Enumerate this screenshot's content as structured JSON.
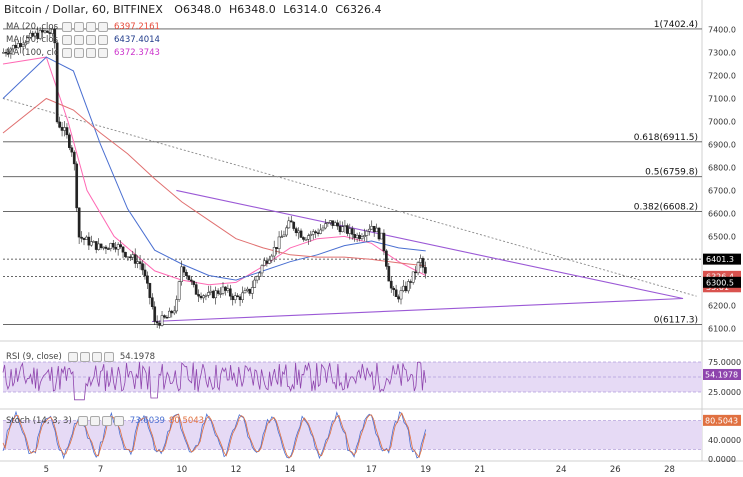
{
  "header": {
    "symbol": "Bitcoin / Dollar, 60, BITFINEX",
    "open": "O6348.0",
    "high": "H6348.0",
    "low": "L6314.0",
    "close": "C6326.4"
  },
  "ma_legend": [
    {
      "label": "MA (20, close)",
      "value": "6397.2161",
      "color": "#e74c3c"
    },
    {
      "label": "MA (50, close)",
      "value": "6437.4014",
      "color": "#1f3a8a"
    },
    {
      "label": "MA (100, close)",
      "value": "6372.3743",
      "color": "#cc33cc"
    }
  ],
  "price_markers": [
    {
      "label": "6401.3",
      "value": 6401.3,
      "bg": "#000000",
      "fg": "#ffffff"
    },
    {
      "label": "6326.4",
      "value": 6326.4,
      "bg": "#d9534f",
      "fg": "#ffffff"
    },
    {
      "label": "35:01",
      "value": 6281,
      "bg": "#d9534f",
      "fg": "#ffffff"
    },
    {
      "label": "6300.5",
      "value": 6300.5,
      "bg": "#000000",
      "fg": "#ffffff"
    }
  ],
  "fib_labels": [
    {
      "label": "1(7402.4)",
      "value": 7402.4
    },
    {
      "label": "0.618(6911.5)",
      "value": 6911.5
    },
    {
      "label": "0.5(6759.8)",
      "value": 6759.8
    },
    {
      "label": "0.382(6608.2)",
      "value": 6608.2
    },
    {
      "label": "0(6117.3)",
      "value": 6117.3
    }
  ],
  "rsi": {
    "label": "RSI (9, close)",
    "value": "54.1978",
    "ticks": [
      "75.0000",
      "50.0000",
      "25.0000"
    ],
    "tick_values": [
      75,
      50,
      25
    ],
    "current_label": "54.1978"
  },
  "stoch": {
    "label": "Stoch (14, 3, 3)",
    "k_value": "73.6039",
    "d_value": "80.5043",
    "ticks": [
      "80.0000",
      "40.0000",
      "0.0000"
    ],
    "tick_values": [
      80,
      40,
      0
    ],
    "current_label": "80.5043"
  },
  "chart_data": {
    "type": "candlestick",
    "title": "Bitcoin / Dollar, 60, BITFINEX",
    "y_ticks": [
      7400,
      7300,
      7200,
      7100,
      7000,
      6900,
      6800,
      6700,
      6600,
      6500,
      6400,
      6300,
      6200,
      6100
    ],
    "y_tick_labels": [
      "7400.0",
      "7300.0",
      "7200.0",
      "7100.0",
      "7000.0",
      "6900.0",
      "6800.0",
      "6700.0",
      "6600.0",
      "6500.0",
      "6400.0",
      "6300.0",
      "6200.0",
      "6100.0"
    ],
    "ylim": [
      6080,
      7450
    ],
    "x_ticks": [
      5,
      7,
      10,
      12,
      14,
      17,
      19,
      21,
      24,
      26,
      28
    ],
    "x_tick_labels": [
      "5",
      "7",
      "10",
      "12",
      "14",
      "17",
      "19",
      "21",
      "24",
      "26",
      "28"
    ],
    "xlim": [
      3.4,
      29.2
    ],
    "price_path": [
      [
        3.4,
        7300
      ],
      [
        4.0,
        7340
      ],
      [
        4.5,
        7370
      ],
      [
        5.0,
        7390
      ],
      [
        5.3,
        7380
      ],
      [
        5.4,
        7000
      ],
      [
        5.7,
        6950
      ],
      [
        6.0,
        6860
      ],
      [
        6.2,
        6500
      ],
      [
        6.5,
        6480
      ],
      [
        7.0,
        6450
      ],
      [
        7.5,
        6470
      ],
      [
        8.0,
        6420
      ],
      [
        8.5,
        6380
      ],
      [
        8.9,
        6200
      ],
      [
        9.0,
        6120
      ],
      [
        9.5,
        6150
      ],
      [
        9.8,
        6200
      ],
      [
        10.0,
        6380
      ],
      [
        10.5,
        6260
      ],
      [
        11.0,
        6240
      ],
      [
        11.5,
        6270
      ],
      [
        12.0,
        6230
      ],
      [
        12.5,
        6260
      ],
      [
        13.0,
        6380
      ],
      [
        13.5,
        6460
      ],
      [
        14.0,
        6560
      ],
      [
        14.5,
        6500
      ],
      [
        15.0,
        6520
      ],
      [
        15.5,
        6560
      ],
      [
        16.0,
        6530
      ],
      [
        16.5,
        6500
      ],
      [
        17.0,
        6550
      ],
      [
        17.4,
        6490
      ],
      [
        17.7,
        6280
      ],
      [
        17.9,
        6230
      ],
      [
        18.3,
        6280
      ],
      [
        18.6,
        6340
      ],
      [
        18.8,
        6400
      ],
      [
        19.0,
        6326
      ]
    ],
    "ma_series": [
      {
        "name": "MA (20, close)",
        "color": "#ff69b4",
        "points": [
          [
            3.4,
            7250
          ],
          [
            5.0,
            7280
          ],
          [
            5.8,
            7000
          ],
          [
            6.5,
            6700
          ],
          [
            7.5,
            6500
          ],
          [
            9.0,
            6350
          ],
          [
            10.0,
            6310
          ],
          [
            11.0,
            6290
          ],
          [
            12.0,
            6300
          ],
          [
            13.0,
            6370
          ],
          [
            14.0,
            6450
          ],
          [
            15.0,
            6490
          ],
          [
            16.0,
            6500
          ],
          [
            17.0,
            6470
          ],
          [
            18.0,
            6390
          ],
          [
            19.0,
            6330
          ]
        ]
      },
      {
        "name": "MA (50, close)",
        "color": "#4a6fd1",
        "points": [
          [
            3.4,
            7100
          ],
          [
            5.0,
            7280
          ],
          [
            6.0,
            7220
          ],
          [
            7.0,
            6900
          ],
          [
            8.0,
            6620
          ],
          [
            9.0,
            6440
          ],
          [
            10.0,
            6380
          ],
          [
            11.0,
            6330
          ],
          [
            12.0,
            6310
          ],
          [
            13.0,
            6350
          ],
          [
            14.0,
            6390
          ],
          [
            15.0,
            6420
          ],
          [
            16.0,
            6460
          ],
          [
            17.0,
            6480
          ],
          [
            18.0,
            6450
          ],
          [
            19.0,
            6437
          ]
        ]
      },
      {
        "name": "MA (100, close)",
        "color": "#e07070",
        "points": [
          [
            3.4,
            6950
          ],
          [
            5.0,
            7100
          ],
          [
            6.0,
            7050
          ],
          [
            7.0,
            6950
          ],
          [
            8.0,
            6860
          ],
          [
            9.0,
            6750
          ],
          [
            10.0,
            6650
          ],
          [
            11.0,
            6570
          ],
          [
            12.0,
            6490
          ],
          [
            13.0,
            6450
          ],
          [
            14.0,
            6420
          ],
          [
            15.0,
            6410
          ],
          [
            16.0,
            6410
          ],
          [
            17.0,
            6400
          ],
          [
            18.0,
            6385
          ],
          [
            19.0,
            6372
          ]
        ]
      }
    ],
    "trendlines": [
      {
        "kind": "resistance",
        "color": "#9b59d6",
        "from": [
          9.8,
          6700
        ],
        "to": [
          28.5,
          6230
        ]
      },
      {
        "kind": "support",
        "color": "#9b59d6",
        "from": [
          8.9,
          6130
        ],
        "to": [
          28.5,
          6230
        ]
      },
      {
        "kind": "long-term",
        "color": "#888888",
        "dashed": true,
        "from": [
          3.4,
          7100
        ],
        "to": [
          29.0,
          6240
        ]
      }
    ],
    "horizontal_levels": [
      7402.4,
      6911.5,
      6759.8,
      6608.2,
      6117.3,
      6401.3,
      6326.4
    ]
  }
}
